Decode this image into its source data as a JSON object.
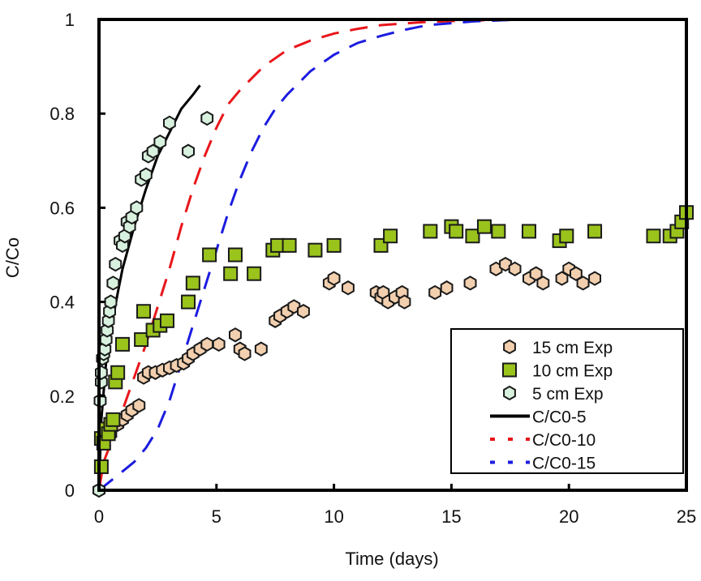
{
  "chart_data": {
    "type": "scatter",
    "title": "",
    "xlabel": "Time (days)",
    "ylabel": "C/Co",
    "xlim": [
      0,
      25
    ],
    "ylim": [
      0,
      1
    ],
    "xticks": [
      0,
      5,
      10,
      15,
      20,
      25
    ],
    "xtick_labels": [
      "0",
      "5",
      "10",
      "15",
      "20",
      "25"
    ],
    "yticks": [
      0,
      0.2,
      0.4,
      0.6,
      0.8,
      1
    ],
    "ytick_labels": [
      "0",
      "0.2",
      "0.4",
      "0.6",
      "0.8",
      "1"
    ],
    "grid": false,
    "legend_position": "bottom-right",
    "series": [
      {
        "name": "15 cm Exp",
        "kind": "marker",
        "marker": "hexagon",
        "color": "#f2cfae",
        "x": [
          0,
          0.5,
          0.8,
          1.0,
          1.2,
          1.4,
          1.7,
          1.9,
          2.1,
          2.4,
          2.7,
          3.0,
          3.3,
          3.6,
          3.8,
          4.0,
          4.3,
          4.6,
          5.1,
          5.8,
          6.0,
          6.2,
          6.9,
          7.5,
          7.7,
          8.0,
          8.3,
          8.7,
          9.8,
          10.0,
          10.6,
          11.8,
          12.0,
          12.1,
          12.3,
          12.6,
          12.9,
          13.0,
          14.3,
          14.8,
          15.8,
          16.9,
          17.3,
          17.7,
          18.3,
          18.6,
          18.9,
          19.7,
          20.0,
          20.3,
          20.6,
          21.1
        ],
        "y": [
          0,
          0.12,
          0.14,
          0.15,
          0.16,
          0.17,
          0.18,
          0.24,
          0.25,
          0.25,
          0.255,
          0.26,
          0.265,
          0.27,
          0.28,
          0.29,
          0.3,
          0.31,
          0.31,
          0.33,
          0.3,
          0.29,
          0.3,
          0.36,
          0.37,
          0.38,
          0.39,
          0.38,
          0.44,
          0.45,
          0.43,
          0.42,
          0.41,
          0.42,
          0.4,
          0.41,
          0.42,
          0.4,
          0.42,
          0.43,
          0.44,
          0.47,
          0.48,
          0.47,
          0.45,
          0.46,
          0.44,
          0.45,
          0.47,
          0.46,
          0.44,
          0.45
        ]
      },
      {
        "name": "10 cm Exp",
        "kind": "marker",
        "marker": "square",
        "color": "#9ac31c",
        "x": [
          0.1,
          0.1,
          0.2,
          0.3,
          0.4,
          0.5,
          0.6,
          0.7,
          0.8,
          1.0,
          1.8,
          1.9,
          2.3,
          2.6,
          2.9,
          3.8,
          4.0,
          4.7,
          5.6,
          5.8,
          6.6,
          7.4,
          7.6,
          8.1,
          9.2,
          10.0,
          12.0,
          12.4,
          14.1,
          15.0,
          15.2,
          15.9,
          16.4,
          17.0,
          18.3,
          19.6,
          19.9,
          21.1,
          23.6,
          24.3,
          24.6,
          24.8,
          25.0
        ],
        "y": [
          0.05,
          0.11,
          0.1,
          0.13,
          0.12,
          0.14,
          0.15,
          0.23,
          0.25,
          0.31,
          0.32,
          0.38,
          0.34,
          0.35,
          0.36,
          0.4,
          0.44,
          0.5,
          0.46,
          0.5,
          0.46,
          0.51,
          0.52,
          0.52,
          0.51,
          0.52,
          0.52,
          0.54,
          0.55,
          0.56,
          0.55,
          0.54,
          0.56,
          0.55,
          0.55,
          0.53,
          0.54,
          0.55,
          0.54,
          0.54,
          0.55,
          0.57,
          0.59
        ]
      },
      {
        "name": "5 cm Exp",
        "kind": "marker",
        "marker": "hexagon",
        "color": "#d8f1de",
        "x": [
          0,
          0.05,
          0.1,
          0.1,
          0.15,
          0.2,
          0.25,
          0.3,
          0.35,
          0.4,
          0.45,
          0.5,
          0.6,
          0.7,
          0.9,
          1.0,
          1.1,
          1.2,
          1.3,
          1.4,
          1.6,
          1.8,
          2.0,
          2.1,
          2.3,
          2.6,
          3.0,
          3.8,
          4.6
        ],
        "y": [
          0,
          0.19,
          0.23,
          0.25,
          0.28,
          0.29,
          0.3,
          0.32,
          0.34,
          0.36,
          0.38,
          0.4,
          0.44,
          0.48,
          0.53,
          0.52,
          0.54,
          0.57,
          0.56,
          0.58,
          0.6,
          0.66,
          0.67,
          0.71,
          0.72,
          0.74,
          0.78,
          0.72,
          0.79
        ]
      },
      {
        "name": "C/C0-5",
        "kind": "line",
        "dash": "solid",
        "color": "#000000",
        "x": [
          0,
          0.1,
          0.3,
          0.5,
          0.8,
          1.0,
          1.5,
          2.0,
          2.5,
          3.0,
          3.5,
          4.0,
          4.3
        ],
        "y": [
          0,
          0.15,
          0.27,
          0.34,
          0.42,
          0.47,
          0.56,
          0.64,
          0.71,
          0.76,
          0.81,
          0.84,
          0.86
        ]
      },
      {
        "name": "C/C0-10",
        "kind": "line",
        "dash": "dashed",
        "color": "#e8161b",
        "x": [
          0,
          0.2,
          0.5,
          1.0,
          1.5,
          2.0,
          2.5,
          3.0,
          3.5,
          4.0,
          4.5,
          5.0,
          5.5,
          6.0,
          7.0,
          8.0,
          9.0,
          10.0,
          11.0,
          12.0,
          14.0,
          16.0,
          18.0,
          25.0
        ],
        "y": [
          0,
          0.06,
          0.1,
          0.17,
          0.24,
          0.31,
          0.39,
          0.47,
          0.56,
          0.64,
          0.71,
          0.77,
          0.82,
          0.85,
          0.9,
          0.935,
          0.955,
          0.97,
          0.98,
          0.988,
          0.995,
          0.998,
          1.0,
          1.0
        ]
      },
      {
        "name": "C/C0-15",
        "kind": "line",
        "dash": "dashed",
        "color": "#1c1ce0",
        "x": [
          0,
          0.5,
          1.0,
          1.5,
          2.0,
          2.5,
          3.0,
          3.5,
          4.0,
          4.5,
          5.0,
          5.5,
          6.0,
          6.5,
          7.0,
          7.5,
          8.0,
          9.0,
          10.0,
          11.0,
          12.0,
          13.0,
          14.0,
          16.0,
          18.0,
          25.0
        ],
        "y": [
          0,
          0.02,
          0.04,
          0.06,
          0.09,
          0.13,
          0.19,
          0.27,
          0.35,
          0.43,
          0.51,
          0.59,
          0.66,
          0.72,
          0.77,
          0.81,
          0.84,
          0.89,
          0.925,
          0.95,
          0.965,
          0.978,
          0.988,
          0.996,
          1.0,
          1.0
        ]
      }
    ]
  }
}
